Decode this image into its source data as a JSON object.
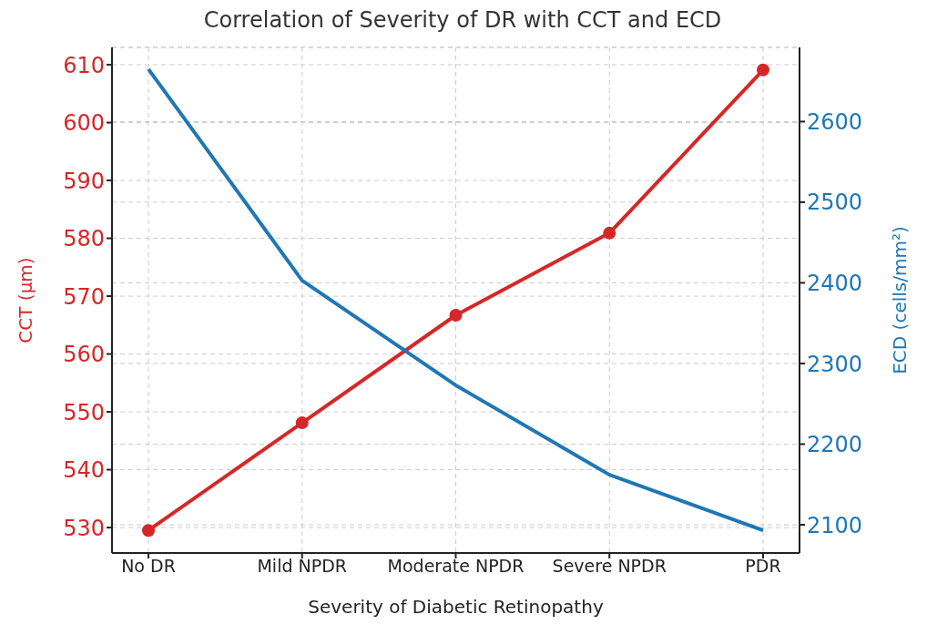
{
  "chart_data": {
    "type": "line",
    "title": "Correlation of Severity of DR with CCT and ECD",
    "xlabel": "Severity of Diabetic Retinopathy",
    "ylabel": "CCT (µm)",
    "y2label": "ECD (cells/mm²)",
    "categories": [
      "No DR",
      "Mild NPDR",
      "Moderate NPDR",
      "Severe NPDR",
      "PDR"
    ],
    "series": [
      {
        "color": "#d62728",
        "values": [
          529.5,
          548.1,
          566.7,
          580.9,
          609.1
        ],
        "marker": "circle"
      },
      {
        "color": "#1f77b4",
        "values": [
          2665,
          2403,
          2273,
          2162,
          2093
        ],
        "axis": "y2",
        "marker": "none"
      }
    ],
    "ylim": [
      525.6,
      613
    ],
    "yticks": [
      530,
      540,
      550,
      560,
      570,
      580,
      590,
      600,
      610
    ],
    "y2lim": [
      2065,
      2692
    ],
    "y2ticks": [
      2100,
      2200,
      2300,
      2400,
      2500,
      2600
    ],
    "grid": true,
    "legend": false,
    "line_style": "solid"
  }
}
